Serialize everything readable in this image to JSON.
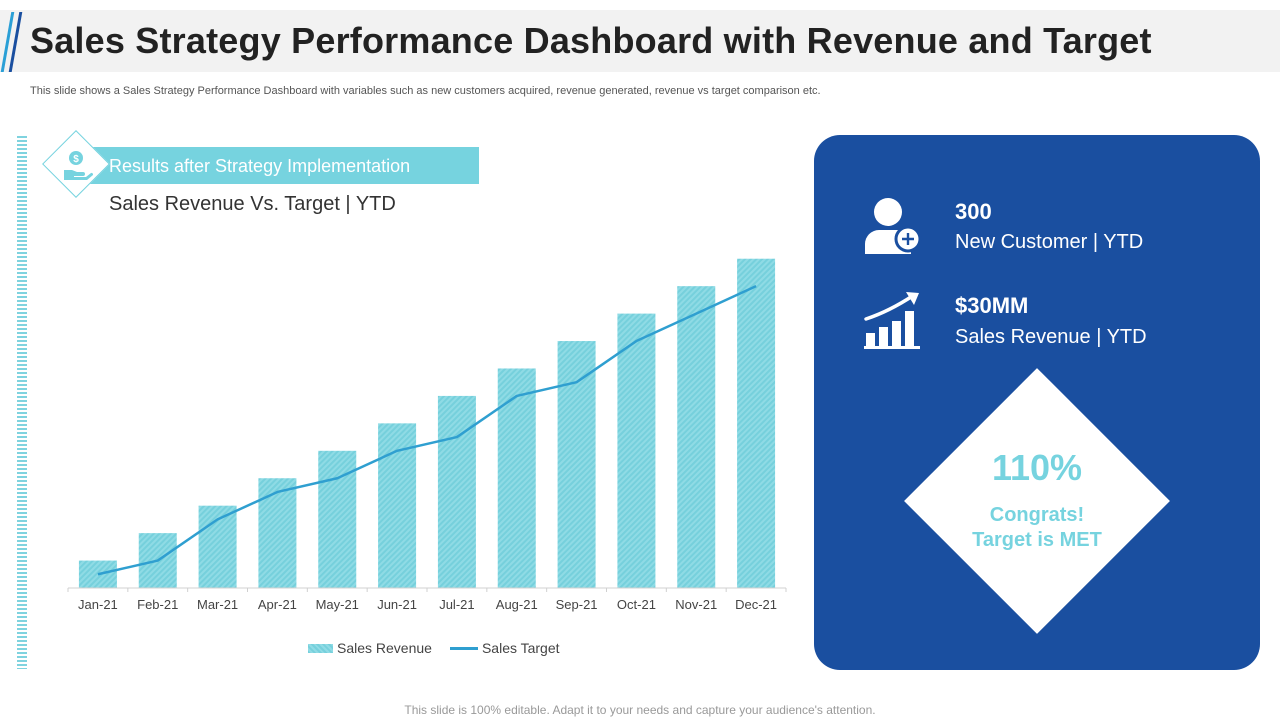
{
  "header": {
    "title": "Sales Strategy Performance Dashboard with Revenue and Target",
    "subtitle": "This slide shows a Sales Strategy Performance Dashboard with variables such as new customers acquired, revenue generated,  revenue vs target comparison etc."
  },
  "banner": {
    "label": "Results after Strategy Implementation"
  },
  "chart_heading": "Sales Revenue Vs. Target | YTD",
  "chart_data": {
    "type": "bar",
    "title": "Sales Revenue Vs. Target | YTD",
    "categories": [
      "Jan-21",
      "Feb-21",
      "Mar-21",
      "Apr-21",
      "May-21",
      "Jun-21",
      "Jul-21",
      "Aug-21",
      "Sep-21",
      "Oct-21",
      "Nov-21",
      "Dec-21"
    ],
    "series": [
      {
        "name": "Sales Revenue",
        "type": "bar",
        "values": [
          1,
          2,
          3,
          4,
          5,
          6,
          7,
          8,
          9,
          10,
          11,
          12
        ]
      },
      {
        "name": "Sales Target",
        "type": "line",
        "values": [
          0.5,
          1,
          2.5,
          3.5,
          4,
          5,
          5.5,
          7,
          7.5,
          9,
          10,
          11
        ]
      }
    ],
    "ylim": [
      0,
      12.5
    ],
    "grid": false,
    "legend": "bottom",
    "colors": {
      "bar": "#7fd3df",
      "line": "#2f9fd0"
    }
  },
  "kpis": {
    "customers": {
      "value": "300",
      "label": "New Customer | YTD",
      "icon": "add-user-icon"
    },
    "revenue": {
      "value": "$30MM",
      "label": "Sales Revenue | YTD",
      "icon": "growth-chart-icon"
    }
  },
  "achievement": {
    "percent": "110%",
    "line1": "Congrats!",
    "line2": "Target is MET"
  },
  "footer": "This slide is 100% editable. Adapt it to your needs and capture your audience's attention.",
  "colors": {
    "accent": "#76d3df",
    "panel": "#1a4fa0",
    "line": "#2f9fd0"
  }
}
